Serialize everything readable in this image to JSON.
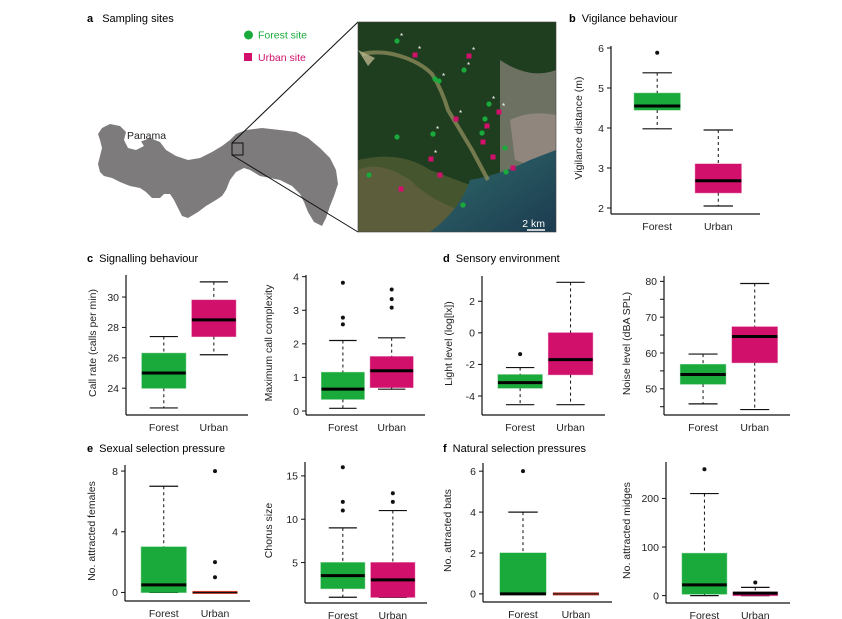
{
  "colors": {
    "forest": "#1aaa3c",
    "urban": "#d0106b",
    "zero_line": "#c0392b",
    "land": "#7d7b7b"
  },
  "map_panel": {
    "letter": "a",
    "title": "Sampling sites",
    "country_label": "Panama",
    "legend": [
      {
        "label": "Forest site",
        "marker": "circle",
        "color_key": "forest"
      },
      {
        "label": "Urban site",
        "marker": "square",
        "color_key": "urban"
      }
    ],
    "scale_bar": "2 km",
    "star_symbol": "*",
    "site_counts": {
      "forest": 14,
      "urban": 11
    }
  },
  "chart_data": [
    {
      "id": "b",
      "letter": "b",
      "title": "Vigilance behaviour",
      "type": "box",
      "ylabel": "Vigilance distance (m)",
      "ylim": [
        1.95,
        6.05
      ],
      "yticks": [
        2,
        3,
        4,
        5,
        6
      ],
      "minor_ticks": [],
      "categories": [
        "Forest",
        "Urban"
      ],
      "series": [
        {
          "name": "Forest",
          "whisker_low": 3.98,
          "q1": 4.45,
          "median": 4.55,
          "q3": 4.87,
          "whisker_high": 5.38,
          "outliers": [
            5.88
          ]
        },
        {
          "name": "Urban",
          "whisker_low": 2.05,
          "q1": 2.38,
          "median": 2.68,
          "q3": 3.1,
          "whisker_high": 3.95,
          "outliers": []
        }
      ]
    },
    {
      "id": "c1",
      "letter": "c",
      "title": "Signalling behaviour",
      "type": "box",
      "ylabel": "Call rate (calls per min)",
      "ylim": [
        22.5,
        31.45
      ],
      "yticks": [
        24,
        26,
        28,
        30
      ],
      "minor_ticks": [],
      "categories": [
        "Forest",
        "Urban"
      ],
      "series": [
        {
          "name": "Forest",
          "whisker_low": 22.7,
          "q1": 24.0,
          "median": 25.0,
          "q3": 26.3,
          "whisker_high": 27.4,
          "outliers": []
        },
        {
          "name": "Urban",
          "whisker_low": 26.2,
          "q1": 27.4,
          "median": 28.5,
          "q3": 29.8,
          "whisker_high": 31.0,
          "outliers": []
        }
      ]
    },
    {
      "id": "c2",
      "letter": "",
      "title": "",
      "type": "box",
      "ylabel": "Maximum call complexity",
      "ylim": [
        0,
        4.05
      ],
      "yticks": [
        0,
        1,
        2,
        3,
        4
      ],
      "minor_ticks": [],
      "categories": [
        "Forest",
        "Urban"
      ],
      "series": [
        {
          "name": "Forest",
          "whisker_low": 0.08,
          "q1": 0.35,
          "median": 0.65,
          "q3": 1.15,
          "whisker_high": 2.1,
          "outliers": [
            2.58,
            2.78,
            3.82
          ]
        },
        {
          "name": "Urban",
          "whisker_low": 0.65,
          "q1": 0.7,
          "median": 1.2,
          "q3": 1.62,
          "whisker_high": 2.18,
          "outliers": [
            3.08,
            3.33,
            3.62
          ]
        }
      ]
    },
    {
      "id": "d1",
      "letter": "d",
      "title": "Sensory environment",
      "type": "box",
      "ylabel": "Light level (log[lx])",
      "ylim": [
        -4.95,
        3.6
      ],
      "yticks": [
        -4,
        -2,
        0,
        2
      ],
      "minor_ticks": [],
      "categories": [
        "Forest",
        "Urban"
      ],
      "series": [
        {
          "name": "Forest",
          "whisker_low": -4.55,
          "q1": -3.5,
          "median": -3.15,
          "q3": -2.65,
          "whisker_high": -2.2,
          "outliers": [
            -1.35
          ]
        },
        {
          "name": "Urban",
          "whisker_low": -4.55,
          "q1": -2.65,
          "median": -1.7,
          "q3": 0.0,
          "whisker_high": 3.2,
          "outliers": []
        }
      ]
    },
    {
      "id": "d2",
      "letter": "",
      "title": "",
      "type": "box",
      "ylabel": "Noise level (dBA SPL)",
      "ylim": [
        43.8,
        81.5
      ],
      "yticks": [
        50,
        60,
        70,
        80
      ],
      "minor_ticks": [
        45,
        55,
        65,
        75
      ],
      "categories": [
        "Forest",
        "Urban"
      ],
      "series": [
        {
          "name": "Forest",
          "whisker_low": 45.8,
          "q1": 51.3,
          "median": 54.0,
          "q3": 56.8,
          "whisker_high": 59.7,
          "outliers": []
        },
        {
          "name": "Urban",
          "whisker_low": 44.2,
          "q1": 57.3,
          "median": 64.6,
          "q3": 67.3,
          "whisker_high": 79.4,
          "outliers": []
        }
      ]
    },
    {
      "id": "e1",
      "letter": "e",
      "title": "Sexual selection pressure",
      "type": "box",
      "ylabel": "No. attracted females",
      "ylim": [
        -0.3,
        8.4
      ],
      "yticks": [
        0,
        4,
        8
      ],
      "minor_ticks": [],
      "categories": [
        "Forest",
        "Urban"
      ],
      "series": [
        {
          "name": "Forest",
          "whisker_low": 0,
          "q1": 0,
          "median": 0.5,
          "q3": 3,
          "whisker_high": 7,
          "outliers": []
        },
        {
          "name": "Urban",
          "whisker_low": 0,
          "q1": 0,
          "median": 0,
          "q3": 0,
          "whisker_high": 0,
          "outliers": [
            1,
            2,
            8
          ]
        }
      ]
    },
    {
      "id": "e2",
      "letter": "",
      "title": "",
      "type": "box",
      "ylabel": "Chorus size",
      "ylim": [
        0.8,
        16.6
      ],
      "yticks": [
        5,
        10,
        15
      ],
      "minor_ticks": [],
      "categories": [
        "Forest",
        "Urban"
      ],
      "series": [
        {
          "name": "Forest",
          "whisker_low": 1,
          "q1": 2,
          "median": 3.5,
          "q3": 5,
          "whisker_high": 9,
          "outliers": [
            11,
            12,
            16
          ]
        },
        {
          "name": "Urban",
          "whisker_low": 1,
          "q1": 1,
          "median": 3,
          "q3": 5,
          "whisker_high": 11,
          "outliers": [
            12,
            13
          ]
        }
      ]
    },
    {
      "id": "f1",
      "letter": "f",
      "title": "Natural selection pressures",
      "type": "box",
      "ylabel": "No. attracted bats",
      "ylim": [
        -0.2,
        6.4
      ],
      "yticks": [
        0,
        2,
        4,
        6
      ],
      "minor_ticks": [],
      "categories": [
        "Forest",
        "Urban"
      ],
      "series": [
        {
          "name": "Forest",
          "whisker_low": 0,
          "q1": 0,
          "median": 0,
          "q3": 2,
          "whisker_high": 4,
          "outliers": [
            6
          ]
        },
        {
          "name": "Urban",
          "whisker_low": 0,
          "q1": 0,
          "median": 0,
          "q3": 0,
          "whisker_high": 0,
          "outliers": []
        }
      ]
    },
    {
      "id": "f2",
      "letter": "",
      "title": "",
      "type": "box",
      "ylabel": "No. attracted midges",
      "ylim": [
        -7,
        275
      ],
      "yticks": [
        0,
        100,
        200
      ],
      "minor_ticks": [],
      "categories": [
        "Forest",
        "Urban"
      ],
      "series": [
        {
          "name": "Forest",
          "whisker_low": 0,
          "q1": 3,
          "median": 22,
          "q3": 87,
          "whisker_high": 210,
          "outliers": [
            260
          ]
        },
        {
          "name": "Urban",
          "whisker_low": 0,
          "q1": 0,
          "median": 5,
          "q3": 7,
          "whisker_high": 17,
          "outliers": [
            27
          ]
        }
      ]
    }
  ]
}
